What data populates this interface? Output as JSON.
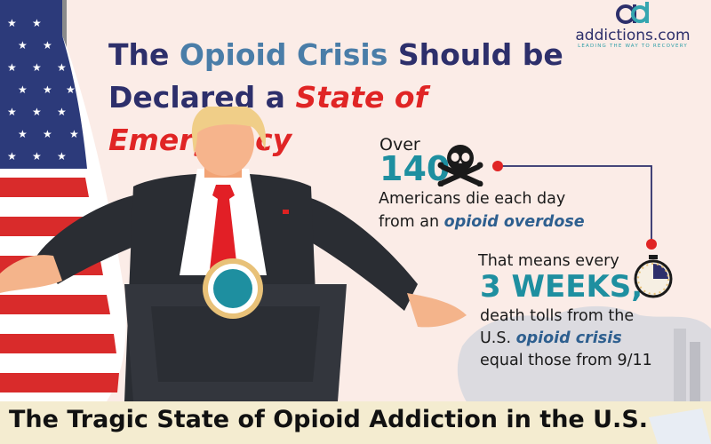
{
  "brand": {
    "name": "addictions.com",
    "tagline": "LEADING THE WAY TO RECOVERY",
    "colors": {
      "navy": "#2d2f6b",
      "teal": "#1e8fa0",
      "red": "#e02525"
    }
  },
  "headline": {
    "part1": "The ",
    "highlight": "Opioid Crisis",
    "part2": " Should be",
    "line2_start": "Declared a ",
    "emphasis": "State of Emergency"
  },
  "stat1": {
    "prefix": "Over",
    "number": "140",
    "line1": "Americans die each day",
    "line2_start": "from an ",
    "line2_em": "opioid overdose",
    "icon": "skull-crossbones-icon"
  },
  "stat2": {
    "intro": "That means every",
    "number": "3 WEEKS,",
    "line1": "death tolls from the",
    "line2_start": "U.S. ",
    "line2_em": "opioid crisis",
    "line3": "equal those from 9/11",
    "icon": "stopwatch-icon"
  },
  "footer": {
    "title": "The Tragic State of Opioid Addiction in the U.S."
  }
}
